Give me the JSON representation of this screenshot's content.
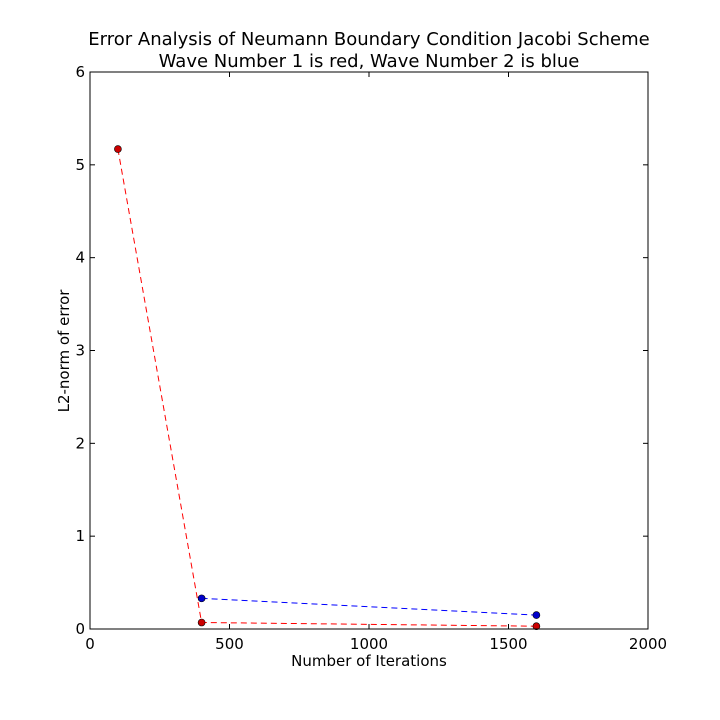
{
  "chart_data": {
    "type": "line",
    "title": "Error Analysis of Neumann Boundary Condition Jacobi Scheme",
    "subtitle": "Wave Number 1 is red, Wave Number 2 is blue",
    "xlabel": "Number of Iterations",
    "ylabel": "L2-norm of error",
    "xlim": [
      0,
      2000
    ],
    "ylim": [
      0,
      6
    ],
    "xticks": [
      0,
      500,
      1000,
      1500,
      2000
    ],
    "yticks": [
      0,
      1,
      2,
      3,
      4,
      5,
      6
    ],
    "grid": false,
    "series": [
      {
        "color": "#ff0000",
        "marker_color": "#cc0000",
        "line_style": "dashed",
        "x": [
          100,
          400,
          1600
        ],
        "y": [
          5.17,
          0.07,
          0.03
        ]
      },
      {
        "color": "#0000ff",
        "marker_color": "#0000cc",
        "line_style": "dashed",
        "x": [
          400,
          1600
        ],
        "y": [
          0.33,
          0.15
        ]
      }
    ]
  }
}
